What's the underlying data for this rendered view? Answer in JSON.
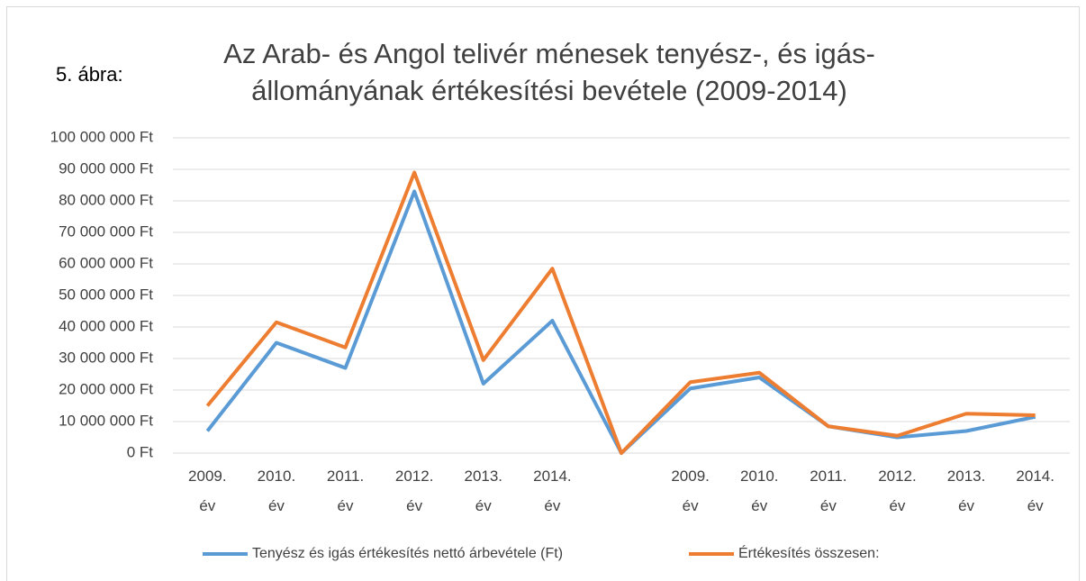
{
  "chart_data": {
    "type": "line",
    "figure_label": "5. ábra:",
    "title": [
      "Az Arab- és Angol telivér ménesek  tenyész-, és igás-",
      "állományának értékesítési bevétele (2009-2014)"
    ],
    "categories": [
      "2009. év",
      "2010. év",
      "2011. év",
      "2012. év",
      "2013. év",
      "2014. év",
      null,
      "2009. év",
      "2010. év",
      "2011. év",
      "2012. év",
      "2013. év",
      "2014. év"
    ],
    "series": [
      {
        "name": "Tenyész és igás értékesítés nettó árbevétele (Ft)",
        "color": "#5b9bd5",
        "values": [
          7000000,
          35000000,
          27000000,
          83000000,
          22000000,
          42000000,
          0,
          20500000,
          24000000,
          8500000,
          5000000,
          7000000,
          11500000
        ]
      },
      {
        "name": "Értékesítés összesen:",
        "color": "#ed7d31",
        "values": [
          15000000,
          41500000,
          33500000,
          89000000,
          29500000,
          58500000,
          0,
          22500000,
          25500000,
          8500000,
          5500000,
          12500000,
          12000000
        ]
      }
    ],
    "ylim": [
      0,
      100000000
    ],
    "yticks": [
      {
        "value": 0,
        "label": "0 Ft"
      },
      {
        "value": 10000000,
        "label": "10 000 000 Ft"
      },
      {
        "value": 20000000,
        "label": "20 000 000 Ft"
      },
      {
        "value": 30000000,
        "label": "30 000 000 Ft"
      },
      {
        "value": 40000000,
        "label": "40 000 000 Ft"
      },
      {
        "value": 50000000,
        "label": "50 000 000 Ft"
      },
      {
        "value": 60000000,
        "label": "60 000 000 Ft"
      },
      {
        "value": 70000000,
        "label": "70 000 000 Ft"
      },
      {
        "value": 80000000,
        "label": "80 000 000 Ft"
      },
      {
        "value": 90000000,
        "label": "90 000 000 Ft"
      },
      {
        "value": 100000000,
        "label": "100 000 000 Ft"
      }
    ],
    "grid": true,
    "legend": "bottom"
  }
}
